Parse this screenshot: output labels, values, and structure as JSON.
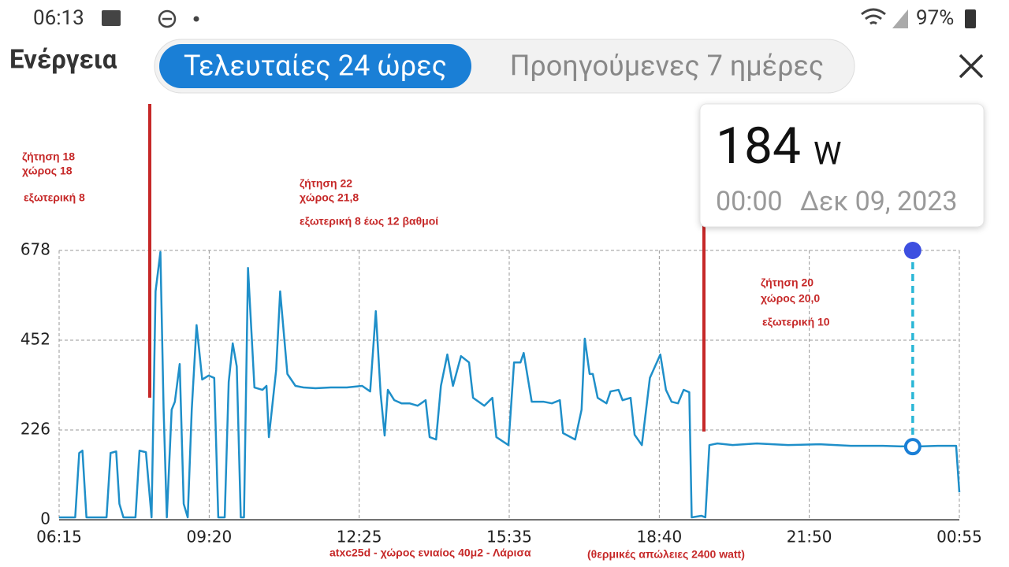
{
  "status_bar": {
    "time": "06:13",
    "battery": "97%"
  },
  "header": {
    "title": "Ενέργεια",
    "tabs": [
      "Τελευταίες 24 ώρες",
      "Προηγούμενες 7 ημέρες"
    ]
  },
  "tooltip": {
    "value": 184,
    "unit": "W",
    "time": "00:00",
    "date": "Δεκ 09, 2023"
  },
  "annotations": {
    "first": [
      "ζήτηση 18",
      "χώρος 18",
      "εξωτερική 8"
    ],
    "second": [
      "ζήτηση 22",
      "χώρος 21,8",
      "εξωτερική 8 έως 12 βαθμοί"
    ],
    "third": [
      "ζήτηση 20",
      "χώρος 20,0",
      "εξωτερική 10"
    ],
    "footer": [
      "atxc25d - χώρος ενιαίος 40μ2 - Λάρισα",
      "(θερμικές απώλειες 2400 watt)"
    ]
  },
  "chart_data": {
    "type": "line",
    "color": "#1f8fc9",
    "x": [
      0,
      20,
      25,
      29,
      34,
      59,
      64,
      71,
      75,
      80,
      95,
      100,
      108,
      115,
      120,
      126,
      130,
      134,
      140,
      144,
      150,
      155,
      160,
      165,
      171,
      178,
      186,
      193,
      198,
      206,
      211,
      216,
      221,
      226,
      230,
      235,
      243,
      253,
      258,
      261,
      270,
      275,
      284,
      294,
      304,
      319,
      338,
      358,
      377,
      387,
      394,
      400,
      405,
      409,
      417,
      426,
      436,
      446,
      456,
      461,
      469,
      475,
      483,
      490,
      500,
      510,
      515,
      529,
      539,
      544,
      559,
      566,
      574,
      578,
      588,
      603,
      613,
      623,
      627,
      642,
      650,
      654,
      660,
      664,
      670,
      681,
      686,
      696,
      701,
      711,
      716,
      725,
      735,
      748,
      755,
      762,
      770,
      777,
      784,
      787,
      799,
      804,
      809,
      819,
      838,
      868,
      907,
      946,
      985,
      1025,
      1062,
      1093,
      1116,
      1120
    ],
    "values": [
      6,
      6,
      168,
      174,
      6,
      6,
      168,
      172,
      40,
      6,
      6,
      174,
      170,
      6,
      575,
      674,
      277,
      6,
      277,
      297,
      392,
      40,
      6,
      277,
      490,
      353,
      363,
      357,
      6,
      6,
      347,
      444,
      386,
      6,
      6,
      634,
      333,
      327,
      337,
      208,
      377,
      575,
      367,
      337,
      333,
      331,
      333,
      333,
      337,
      323,
      525,
      317,
      212,
      327,
      301,
      293,
      293,
      287,
      301,
      208,
      202,
      337,
      416,
      337,
      412,
      396,
      307,
      287,
      307,
      208,
      188,
      396,
      396,
      420,
      297,
      297,
      293,
      301,
      218,
      202,
      277,
      456,
      367,
      367,
      307,
      293,
      323,
      327,
      301,
      307,
      214,
      188,
      357,
      416,
      327,
      297,
      293,
      327,
      321,
      6,
      10,
      6,
      188,
      192,
      188,
      192,
      188,
      190,
      186,
      186,
      184,
      186,
      186,
      69
    ],
    "xlim": [
      0,
      1120
    ],
    "xticks": [
      {
        "value": 0,
        "label": "06:15"
      },
      {
        "value": 186.7,
        "label": "09:20"
      },
      {
        "value": 373.3,
        "label": "12:25"
      },
      {
        "value": 560,
        "label": "15:35"
      },
      {
        "value": 746.7,
        "label": "18:40"
      },
      {
        "value": 933.3,
        "label": "21:50"
      },
      {
        "value": 1120,
        "label": "00:55"
      }
    ],
    "ylim": [
      0,
      678
    ],
    "yticks": [
      0,
      226,
      452,
      678
    ],
    "grid": true
  }
}
